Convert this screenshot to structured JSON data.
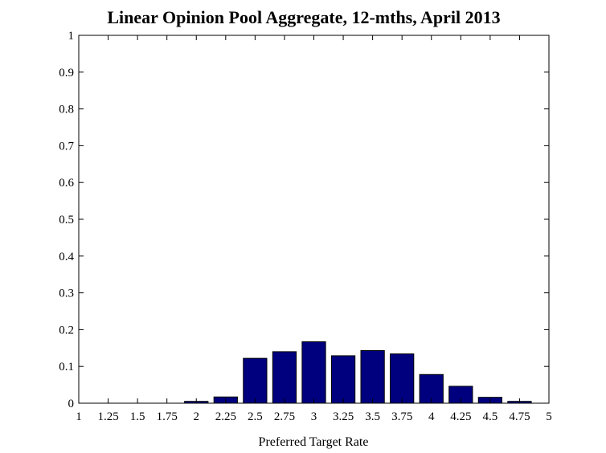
{
  "chart_data": {
    "type": "bar",
    "title": "Linear Opinion Pool Aggregate, 12-mths, April 2013",
    "xlabel": "Preferred Target Rate",
    "ylabel": "",
    "xlim": [
      1,
      5
    ],
    "ylim": [
      0,
      1
    ],
    "grid": false,
    "legend": "none",
    "bar_color": "#00007f",
    "x_ticks": [
      1,
      1.25,
      1.5,
      1.75,
      2,
      2.25,
      2.5,
      2.75,
      3,
      3.25,
      3.5,
      3.75,
      4,
      4.25,
      4.5,
      4.75,
      5
    ],
    "x_tick_labels": [
      "1",
      "1.25",
      "1.5",
      "1.75",
      "2",
      "2.25",
      "2.5",
      "2.75",
      "3",
      "3.25",
      "3.5",
      "3.75",
      "4",
      "4.25",
      "4.5",
      "4.75",
      "5"
    ],
    "y_ticks": [
      0,
      0.1,
      0.2,
      0.3,
      0.4,
      0.5,
      0.6,
      0.7,
      0.8,
      0.9,
      1
    ],
    "y_tick_labels": [
      "0",
      "0.1",
      "0.2",
      "0.3",
      "0.4",
      "0.5",
      "0.6",
      "0.7",
      "0.8",
      "0.9",
      "1"
    ],
    "bar_width": 0.2,
    "x": [
      2,
      2.25,
      2.5,
      2.75,
      3,
      3.25,
      3.5,
      3.75,
      4,
      4.25,
      4.5,
      4.75
    ],
    "values": [
      0.005,
      0.017,
      0.122,
      0.14,
      0.167,
      0.129,
      0.143,
      0.134,
      0.078,
      0.046,
      0.016,
      0.005
    ]
  }
}
